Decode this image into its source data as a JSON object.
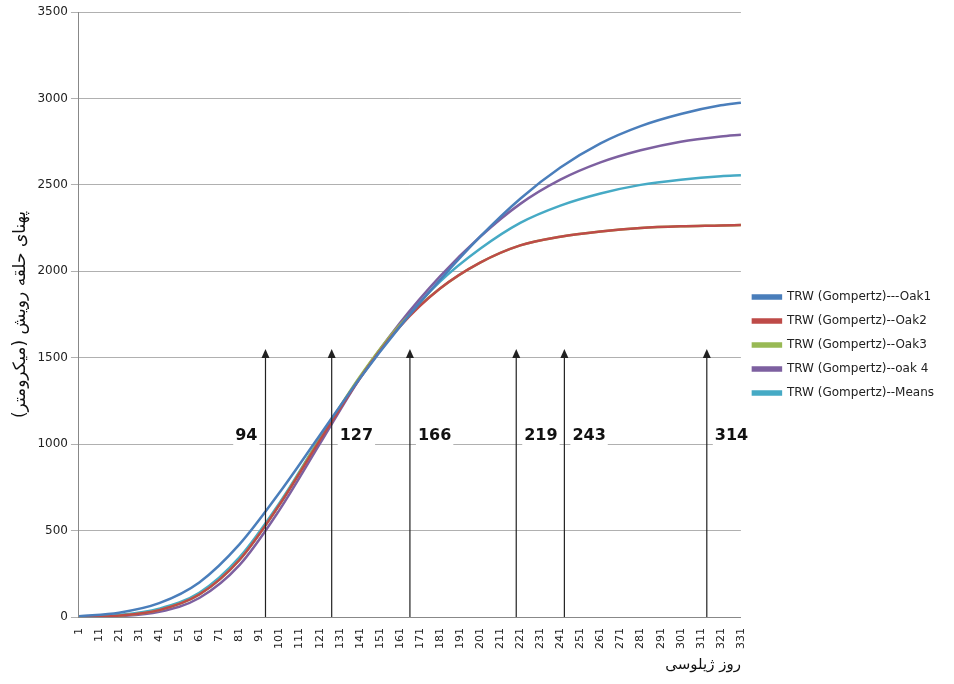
{
  "chart_data": {
    "type": "line",
    "y_label": "پهنای حلقه رویش (میکرومتر)",
    "x_label": "روز ژیلوسی",
    "x": [
      1,
      21,
      41,
      61,
      81,
      101,
      121,
      141,
      161,
      181,
      201,
      221,
      241,
      261,
      281,
      301,
      321,
      331
    ],
    "series": [
      {
        "name": "TRW (Gompertz)---Oak1",
        "color": "#4a7ebb",
        "values": [
          5,
          25,
          80,
          200,
          420,
          720,
          1050,
          1380,
          1680,
          1950,
          2200,
          2420,
          2600,
          2740,
          2840,
          2910,
          2960,
          2975
        ]
      },
      {
        "name": "TRW (Gompertz)--Oak2",
        "color": "#be4b48",
        "values": [
          0,
          8,
          40,
          130,
          330,
          650,
          1020,
          1380,
          1680,
          1900,
          2050,
          2150,
          2200,
          2230,
          2250,
          2260,
          2265,
          2268
        ]
      },
      {
        "name": "TRW (Gompertz)--Oak3",
        "color": "#98b954",
        "values": [
          0,
          8,
          40,
          130,
          330,
          650,
          1030,
          1390,
          1690,
          1900,
          2050,
          2150,
          2200,
          2230,
          2250,
          2260,
          2265,
          2268
        ]
      },
      {
        "name": "TRW (Gompertz)--oak 4",
        "color": "#7d60a0",
        "values": [
          0,
          5,
          30,
          110,
          300,
          620,
          1000,
          1380,
          1700,
          1970,
          2200,
          2390,
          2530,
          2630,
          2700,
          2750,
          2780,
          2790
        ]
      },
      {
        "name": "TRW (Gompertz)--Means",
        "color": "#46aac5",
        "values": [
          2,
          12,
          48,
          140,
          345,
          660,
          1030,
          1385,
          1690,
          1940,
          2130,
          2280,
          2380,
          2450,
          2500,
          2530,
          2550,
          2555
        ]
      }
    ],
    "annotations": [
      94,
      127,
      166,
      219,
      243,
      314
    ],
    "xlim": [
      1,
      331
    ],
    "xticks": [
      1,
      11,
      21,
      31,
      41,
      51,
      61,
      71,
      81,
      91,
      101,
      111,
      121,
      131,
      141,
      151,
      161,
      171,
      181,
      191,
      201,
      211,
      221,
      231,
      241,
      251,
      261,
      271,
      281,
      291,
      301,
      311,
      321,
      331
    ],
    "ylim": [
      0,
      3500
    ],
    "yticks": [
      0,
      500,
      1000,
      1500,
      2000,
      2500,
      3000,
      3500
    ],
    "grid": true,
    "legend": "right",
    "marker": "none",
    "line_style": "solid"
  }
}
